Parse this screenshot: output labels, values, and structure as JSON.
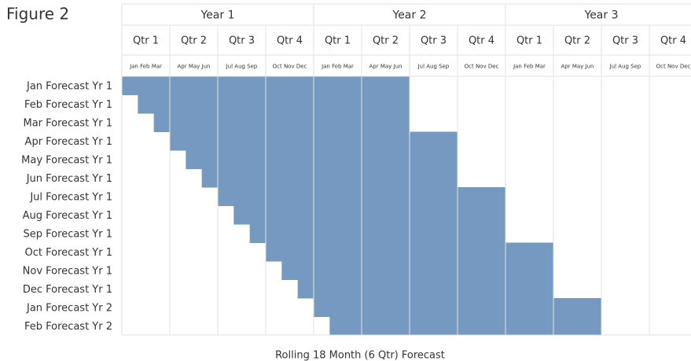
{
  "chart_data": {
    "type": "gantt",
    "title": "Figure 2",
    "x_label": "Rolling 18 Month (6 Qtr) Forecast",
    "years": [
      "Year 1",
      "Year 2",
      "Year 3"
    ],
    "quarters": [
      "Qtr 1",
      "Qtr 2",
      "Qtr 3",
      "Qtr 4",
      "Qtr 1",
      "Qtr 2",
      "Qtr 3",
      "Qtr 4",
      "Qtr 1",
      "Qtr 2",
      "Qtr 3",
      "Qtr 4"
    ],
    "months": [
      "Jan Feb Mar",
      "Apr May Jun",
      "Jul Aug Sep",
      "Oct Nov Dec",
      "Jan Feb Mar",
      "Apr May Jun",
      "Jul Aug Sep",
      "Oct Nov Dec",
      "Jan Feb Mar",
      "Apr May Jun",
      "Jul Aug Sep",
      "Oct Nov Dec"
    ],
    "categories": [
      "Jan Forecast Yr 1",
      "Feb Forecast Yr 1",
      "Mar Forecast Yr 1",
      "Apr Forecast Yr 1",
      "May Forecast Yr 1",
      "Jun Forecast Yr 1",
      "Jul Forecast Yr 1",
      "Aug Forecast Yr 1",
      "Sep Forecast Yr 1",
      "Oct Forecast Yr 1",
      "Nov Forecast Yr 1",
      "Dec Forecast Yr 1",
      "Jan Forecast Yr 2",
      "Feb Forecast Yr 2"
    ],
    "starts": [
      0,
      1,
      2,
      3,
      4,
      5,
      6,
      7,
      8,
      9,
      10,
      11,
      12,
      13
    ],
    "ends": [
      18,
      18,
      18,
      21,
      21,
      21,
      24,
      24,
      24,
      27,
      27,
      27,
      30,
      30
    ],
    "xlim": [
      0,
      36
    ],
    "color": "#7599c1"
  }
}
